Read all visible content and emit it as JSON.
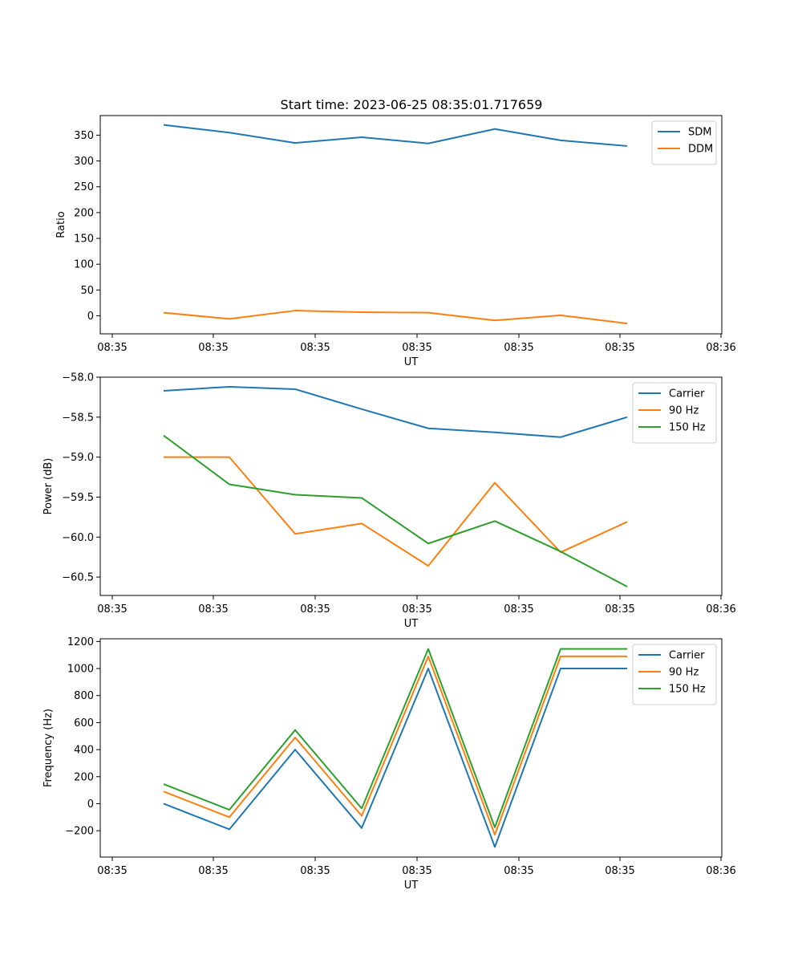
{
  "figure": {
    "title": "Start time: 2023-06-25 08:35:01.717659"
  },
  "chart_data": [
    {
      "type": "line",
      "title": "Start time: 2023-06-25 08:35:01.717659",
      "xlabel": "UT",
      "ylabel": "Ratio",
      "x_tick_labels": [
        "08:35",
        "08:35",
        "08:35",
        "08:35",
        "08:35",
        "08:35",
        "08:36"
      ],
      "y_ticks": [
        0,
        50,
        100,
        150,
        200,
        250,
        300,
        350
      ],
      "ylim": [
        -35,
        388
      ],
      "grid": false,
      "legend_position": "upper right",
      "series": [
        {
          "name": "SDM",
          "color": "#1f77b4",
          "values": [
            370,
            355,
            335,
            346,
            334,
            362,
            340,
            329
          ]
        },
        {
          "name": "DDM",
          "color": "#ff7f0e",
          "values": [
            6,
            -6,
            10,
            7,
            6,
            -9,
            1,
            -15
          ]
        }
      ]
    },
    {
      "type": "line",
      "title": "",
      "xlabel": "UT",
      "ylabel": "Power (dB)",
      "x_tick_labels": [
        "08:35",
        "08:35",
        "08:35",
        "08:35",
        "08:35",
        "08:35",
        "08:36"
      ],
      "y_ticks": [
        -58.0,
        -58.5,
        -59.0,
        -59.5,
        -60.0,
        -60.5
      ],
      "y_tick_labels": [
        "−58.0",
        "−58.5",
        "−59.0",
        "−59.5",
        "−60.0",
        "−60.5"
      ],
      "ylim": [
        -60.73,
        -58.0
      ],
      "grid": false,
      "legend_position": "upper right",
      "series": [
        {
          "name": "Carrier",
          "color": "#1f77b4",
          "values": [
            -58.17,
            -58.12,
            -58.15,
            -58.4,
            -58.64,
            -58.69,
            -58.75,
            -58.5
          ]
        },
        {
          "name": "90 Hz",
          "color": "#ff7f0e",
          "values": [
            -59.0,
            -59.0,
            -59.96,
            -59.83,
            -60.36,
            -59.32,
            -60.19,
            -59.81
          ]
        },
        {
          "name": "150 Hz",
          "color": "#2ca02c",
          "values": [
            -58.73,
            -59.34,
            -59.47,
            -59.51,
            -60.08,
            -59.8,
            -60.18,
            -60.62
          ]
        }
      ]
    },
    {
      "type": "line",
      "title": "",
      "xlabel": "UT",
      "ylabel": "Frequency (Hz)",
      "x_tick_labels": [
        "08:35",
        "08:35",
        "08:35",
        "08:35",
        "08:35",
        "08:35",
        "08:36"
      ],
      "y_ticks": [
        -200,
        0,
        200,
        400,
        600,
        800,
        1000,
        1200
      ],
      "y_tick_labels": [
        "−200",
        "0",
        "200",
        "400",
        "600",
        "800",
        "1000",
        "1200"
      ],
      "ylim": [
        -395,
        1220
      ],
      "grid": false,
      "legend_position": "upper right",
      "series": [
        {
          "name": "Carrier",
          "color": "#1f77b4",
          "values": [
            0,
            -190,
            400,
            -180,
            1000,
            -320,
            1000,
            1000
          ]
        },
        {
          "name": "90 Hz",
          "color": "#ff7f0e",
          "values": [
            90,
            -100,
            490,
            -90,
            1090,
            -230,
            1090,
            1090
          ]
        },
        {
          "name": "150 Hz",
          "color": "#2ca02c",
          "values": [
            145,
            -45,
            545,
            -35,
            1145,
            -175,
            1145,
            1145
          ]
        }
      ]
    }
  ]
}
